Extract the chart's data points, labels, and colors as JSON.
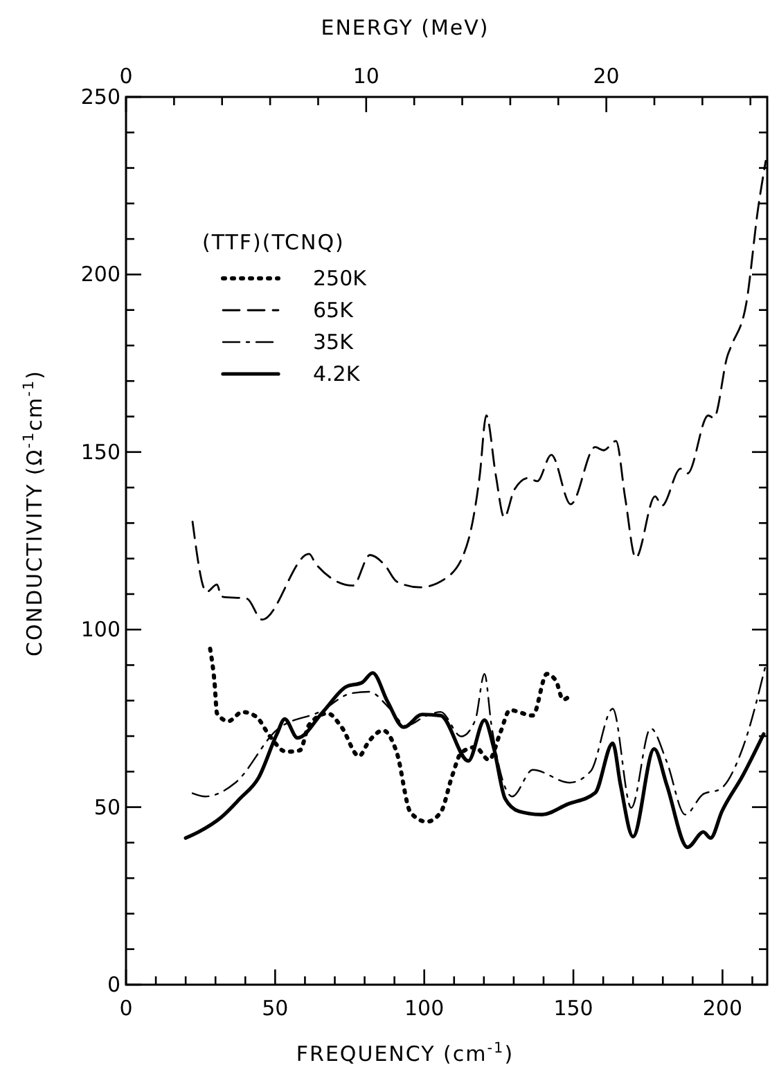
{
  "chart_data": {
    "type": "line",
    "xlabel": "FREQUENCY (cm$^{-1}$)",
    "ylabel": "CONDUCTIVITY (Ω$^{-1}$cm$^{-1}$)",
    "x2label": "ENERGY (MeV)",
    "legend_title": "(TTF)(TCNQ)",
    "legend": "top left",
    "grid": false,
    "xlim": [
      0,
      215
    ],
    "ylim": [
      0,
      250
    ],
    "xticks": [
      0,
      {
        "value": 10,
        "label": null
      },
      {
        "value": 20,
        "label": null
      },
      {
        "value": 30,
        "label": null
      },
      {
        "value": 40,
        "label": null
      },
      50,
      {
        "value": 60,
        "label": null
      },
      {
        "value": 70,
        "label": null
      },
      {
        "value": 80,
        "label": null
      },
      {
        "value": 90,
        "label": null
      },
      100,
      {
        "value": 110,
        "label": null
      },
      {
        "value": 120,
        "label": null
      },
      {
        "value": 130,
        "label": null
      },
      {
        "value": 140,
        "label": null
      },
      150,
      {
        "value": 160,
        "label": null
      },
      {
        "value": 170,
        "label": null
      },
      {
        "value": 180,
        "label": null
      },
      {
        "value": 190,
        "label": null
      },
      200,
      {
        "value": 210,
        "label": null
      }
    ],
    "x2lim": [
      0,
      26.7
    ],
    "x2ticks": [
      0,
      {
        "value": 2,
        "label": null
      },
      {
        "value": 4,
        "label": null
      },
      {
        "value": 6,
        "label": null
      },
      {
        "value": 8,
        "label": null
      },
      10,
      {
        "value": 12,
        "label": null
      },
      {
        "value": 14,
        "label": null
      },
      {
        "value": 16,
        "label": null
      },
      {
        "value": 18,
        "label": null
      },
      20,
      {
        "value": 22,
        "label": null
      },
      {
        "value": 24,
        "label": null
      },
      {
        "value": 26,
        "label": null
      }
    ],
    "yticks": [
      0,
      {
        "value": 10,
        "label": null
      },
      {
        "value": 20,
        "label": null
      },
      {
        "value": 30,
        "label": null
      },
      {
        "value": 40,
        "label": null
      },
      50,
      {
        "value": 60,
        "label": null
      },
      {
        "value": 70,
        "label": null
      },
      {
        "value": 80,
        "label": null
      },
      {
        "value": 90,
        "label": null
      },
      100,
      {
        "value": 110,
        "label": null
      },
      {
        "value": 120,
        "label": null
      },
      {
        "value": 130,
        "label": null
      },
      {
        "value": 140,
        "label": null
      },
      150,
      {
        "value": 160,
        "label": null
      },
      {
        "value": 170,
        "label": null
      },
      {
        "value": 180,
        "label": null
      },
      {
        "value": 190,
        "label": null
      },
      200,
      {
        "value": 210,
        "label": null
      },
      {
        "value": 220,
        "label": null
      },
      {
        "value": 230,
        "label": null
      },
      {
        "value": 240,
        "label": null
      },
      250
    ],
    "series": [
      {
        "name": "250K",
        "color": "#000000",
        "line_style": "dotted",
        "x": [
          28.2,
          29.7,
          30.5,
          34.3,
          39,
          43.6,
          48.3,
          53.7,
          58.3,
          61.4,
          67.6,
          72.3,
          78.1,
          81.5,
          86.2,
          90.8,
          95.4,
          100.8,
          105.5,
          109.4,
          112.4,
          117.1,
          121.7,
          125.6,
          128.7,
          136.4,
          141.1,
          144.2,
          146.5,
          149.6
        ],
        "values": [
          94.6,
          84.9,
          76.4,
          74.2,
          76.8,
          75.5,
          69.9,
          65.6,
          66,
          73.2,
          76.4,
          72.5,
          64.4,
          68.6,
          71.6,
          65.3,
          48.5,
          45.9,
          48.5,
          58.9,
          65.3,
          66.9,
          63.3,
          71.2,
          77.3,
          75.8,
          87.5,
          85.5,
          80.3,
          82
        ]
      },
      {
        "name": "65K",
        "color": "#000000",
        "line_style": "dashed",
        "x": [
          22.3,
          27,
          30.5,
          32,
          40.5,
          45.6,
          61.4,
          63.7,
          76.1,
          81.8,
          86.9,
          90.8,
          98.5,
          107.8,
          114.8,
          118.6,
          120.8,
          124,
          126.8,
          130.2,
          134.9,
          137.9,
          142.6,
          149.1,
          157.3,
          160.1,
          164.3,
          167.4,
          170.9,
          177.4,
          179.7,
          185.9,
          188.3,
          195.2,
          197.1,
          201.7,
          203,
          208,
          212,
          214.5
        ],
        "values": [
          130.4,
          110.6,
          112.7,
          109.3,
          108.7,
          102.8,
          121.3,
          118.4,
          112.4,
          121,
          118,
          113.5,
          111.9,
          114.8,
          125.2,
          143.4,
          160.3,
          143.4,
          131.6,
          139.4,
          142.7,
          141.8,
          149.2,
          135.3,
          151.4,
          150.5,
          153.1,
          136.9,
          120.2,
          137.5,
          134.9,
          145.3,
          144,
          160.3,
          159.6,
          177.2,
          180,
          192,
          219,
          232
        ]
      },
      {
        "name": "35K",
        "color": "#000000",
        "line_style": "dashdot",
        "x": [
          22.3,
          26.6,
          36.7,
          50.6,
          65.3,
          75.3,
          81.5,
          88.5,
          93.9,
          100.8,
          105.5,
          112.4,
          117.1,
          120.2,
          122.5,
          129.5,
          136.4,
          148.8,
          155.8,
          163.2,
          169.4,
          175.9,
          181.3,
          187.5,
          193.6,
          199.1,
          206.8,
          214.5
        ],
        "values": [
          53.9,
          53,
          56.9,
          71.8,
          77,
          82,
          82.5,
          77.7,
          72.9,
          75.8,
          76.8,
          69.9,
          74.5,
          87.5,
          73.2,
          53,
          60.5,
          56.9,
          60.1,
          77.7,
          49.8,
          72.2,
          62.8,
          47.9,
          53.7,
          55,
          66.7,
          90.1
        ]
      },
      {
        "name": "4.2K",
        "color": "#000000",
        "line_style": "solid",
        "x": [
          20,
          24.3,
          32,
          38.2,
          44.4,
          50.6,
          53.2,
          57.5,
          66,
          73.8,
          79.2,
          82.7,
          87.7,
          93.1,
          99.3,
          105.5,
          114.8,
          120.2,
          123.3,
          127.1,
          131.8,
          139.5,
          148,
          157.3,
          163.2,
          165.8,
          170,
          177.1,
          181.3,
          188.3,
          193.6,
          196,
          199.8,
          206.8,
          213.8
        ],
        "values": [
          41.3,
          43,
          47.2,
          52.4,
          58.2,
          70.6,
          74.8,
          69.5,
          76.8,
          83.9,
          85.1,
          87.8,
          79.7,
          72.5,
          76.1,
          75.8,
          63,
          74.5,
          66.7,
          52.4,
          48.8,
          47.9,
          50.8,
          54,
          68,
          56.3,
          41.7,
          66.4,
          56.3,
          38.7,
          43,
          41.3,
          48.8,
          58.9,
          70.6
        ]
      }
    ]
  }
}
